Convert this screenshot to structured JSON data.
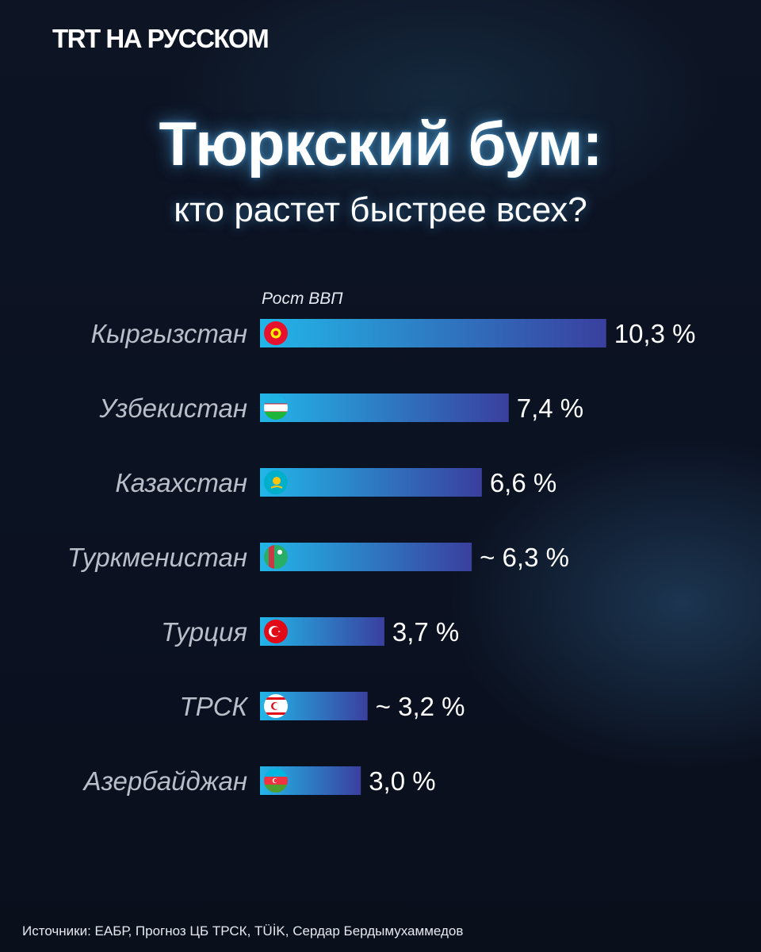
{
  "header": {
    "brand": "TRT НА РУССКОМ",
    "title": "Тюркский бум:",
    "subtitle": "кто растет быстрее всех?"
  },
  "footer": {
    "source": "Источники: ЕАБР, Прогноз ЦБ ТРСК, TÜİK, Сердар Бердымухаммедов"
  },
  "chart_data": {
    "type": "bar",
    "orientation": "horizontal",
    "ylabel": "Рост ВВП",
    "categories": [
      "Кыргызстан",
      "Узбекистан",
      "Казахстан",
      "Туркменистан",
      "Турция",
      "ТРСК",
      "Азербайджан"
    ],
    "values": [
      10.3,
      7.4,
      6.6,
      6.3,
      3.7,
      3.2,
      3.0
    ],
    "value_labels": [
      "10,3 %",
      "7,4 %",
      "6,6 %",
      "~ 6,3 %",
      "3,7 %",
      "~ 3,2 %",
      "3,0 %"
    ],
    "flags": [
      "kyrgyzstan-flag-icon",
      "uzbekistan-flag-icon",
      "kazakhstan-flag-icon",
      "turkmenistan-flag-icon",
      "turkey-flag-icon",
      "northern-cyprus-flag-icon",
      "azerbaijan-flag-icon"
    ],
    "bar_color_start": "#22b6e8",
    "bar_color_end": "#3a3f9e",
    "grid": false,
    "legend": "none"
  }
}
